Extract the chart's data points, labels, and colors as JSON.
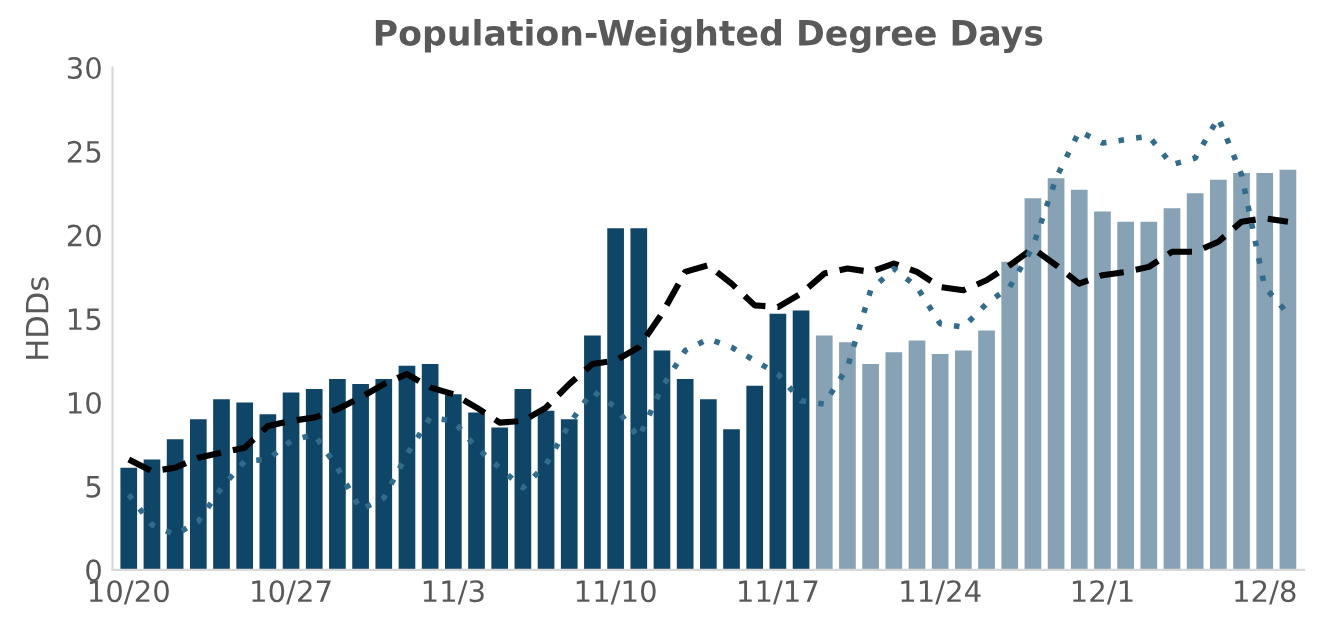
{
  "chart_data": {
    "type": "bar",
    "title": "Population-Weighted Degree Days",
    "ylabel": "HDDs",
    "categories": [
      "10/20",
      null,
      null,
      null,
      null,
      null,
      null,
      "10/27",
      null,
      null,
      null,
      null,
      null,
      null,
      "11/3",
      null,
      null,
      null,
      null,
      null,
      null,
      "11/10",
      null,
      null,
      null,
      null,
      null,
      null,
      "11/17",
      null,
      null,
      null,
      null,
      null,
      null,
      "11/24",
      null,
      null,
      null,
      null,
      null,
      null,
      "12/1",
      null,
      null,
      null,
      null,
      null,
      null,
      "12/8",
      null
    ],
    "series": [
      {
        "colors": [
          "#0f4566",
          "#0f4566",
          "#0f4566",
          "#0f4566",
          "#0f4566",
          "#0f4566",
          "#0f4566",
          "#0f4566",
          "#0f4566",
          "#0f4566",
          "#0f4566",
          "#0f4566",
          "#0f4566",
          "#0f4566",
          "#0f4566",
          "#0f4566",
          "#0f4566",
          "#0f4566",
          "#0f4566",
          "#0f4566",
          "#0f4566",
          "#0f4566",
          "#0f4566",
          "#0f4566",
          "#0f4566",
          "#0f4566",
          "#0f4566",
          "#0f4566",
          "#0f4566",
          "#0f4566",
          "#86a2b4",
          "#86a2b4",
          "#86a2b4",
          "#86a2b4",
          "#86a2b4",
          "#86a2b4",
          "#86a2b4",
          "#86a2b4",
          "#86a2b4",
          "#86a2b4",
          "#86a2b4",
          "#86a2b4",
          "#86a2b4",
          "#86a2b4",
          "#86a2b4",
          "#86a2b4",
          "#86a2b4",
          "#86a2b4",
          "#86a2b4",
          "#86a2b4",
          "#86a2b4"
        ],
        "values": [
          6.1,
          6.6,
          7.8,
          9.0,
          10.2,
          10.0,
          9.3,
          10.6,
          10.8,
          11.4,
          11.1,
          11.4,
          12.2,
          12.3,
          10.5,
          9.4,
          8.5,
          10.8,
          9.5,
          9.0,
          14.0,
          20.4,
          20.4,
          13.1,
          11.4,
          10.2,
          8.4,
          11.0,
          15.3,
          15.5,
          14.0,
          13.6,
          12.3,
          13.0,
          13.7,
          12.9,
          13.1,
          14.3,
          18.4,
          22.2,
          23.4,
          22.7,
          21.4,
          20.8,
          20.8,
          21.6,
          22.5,
          23.3,
          23.7,
          23.7,
          23.9
        ]
      },
      {
        "type": "line",
        "color": "#000000",
        "line_style": "dashed",
        "values": [
          6.6,
          5.9,
          6.1,
          6.7,
          7.0,
          7.3,
          8.6,
          8.9,
          9.1,
          9.6,
          10.3,
          11.1,
          11.7,
          10.9,
          10.5,
          9.7,
          8.8,
          8.9,
          9.7,
          11.1,
          12.3,
          12.5,
          13.3,
          15.3,
          17.8,
          18.2,
          17.1,
          15.8,
          15.7,
          16.5,
          17.7,
          18.0,
          17.8,
          18.3,
          17.8,
          16.9,
          16.7,
          17.3,
          18.2,
          19.2,
          18.2,
          17.1,
          17.6,
          17.8,
          18.1,
          19.0,
          19.0,
          19.6,
          20.8,
          21.0,
          20.8
        ]
      },
      {
        "type": "line",
        "color": "#336b8a",
        "line_style": "dotted",
        "values": [
          4.5,
          2.7,
          2.1,
          2.9,
          4.9,
          6.5,
          6.6,
          7.7,
          8.1,
          6.1,
          3.6,
          4.3,
          6.9,
          9.1,
          8.9,
          7.3,
          6.1,
          4.9,
          6.3,
          8.7,
          10.7,
          9.7,
          7.9,
          10.9,
          13.1,
          13.8,
          13.3,
          12.5,
          11.7,
          10.1,
          9.9,
          12.1,
          16.7,
          18.0,
          16.9,
          14.7,
          14.5,
          15.9,
          16.9,
          19.3,
          23.4,
          26.2,
          25.5,
          25.7,
          25.9,
          24.2,
          24.6,
          27.0,
          23.6,
          16.9,
          15.3
        ]
      }
    ],
    "ylim": [
      0,
      30
    ],
    "yticks": [
      0,
      5,
      10,
      15,
      20,
      25,
      30
    ],
    "grid": false
  }
}
